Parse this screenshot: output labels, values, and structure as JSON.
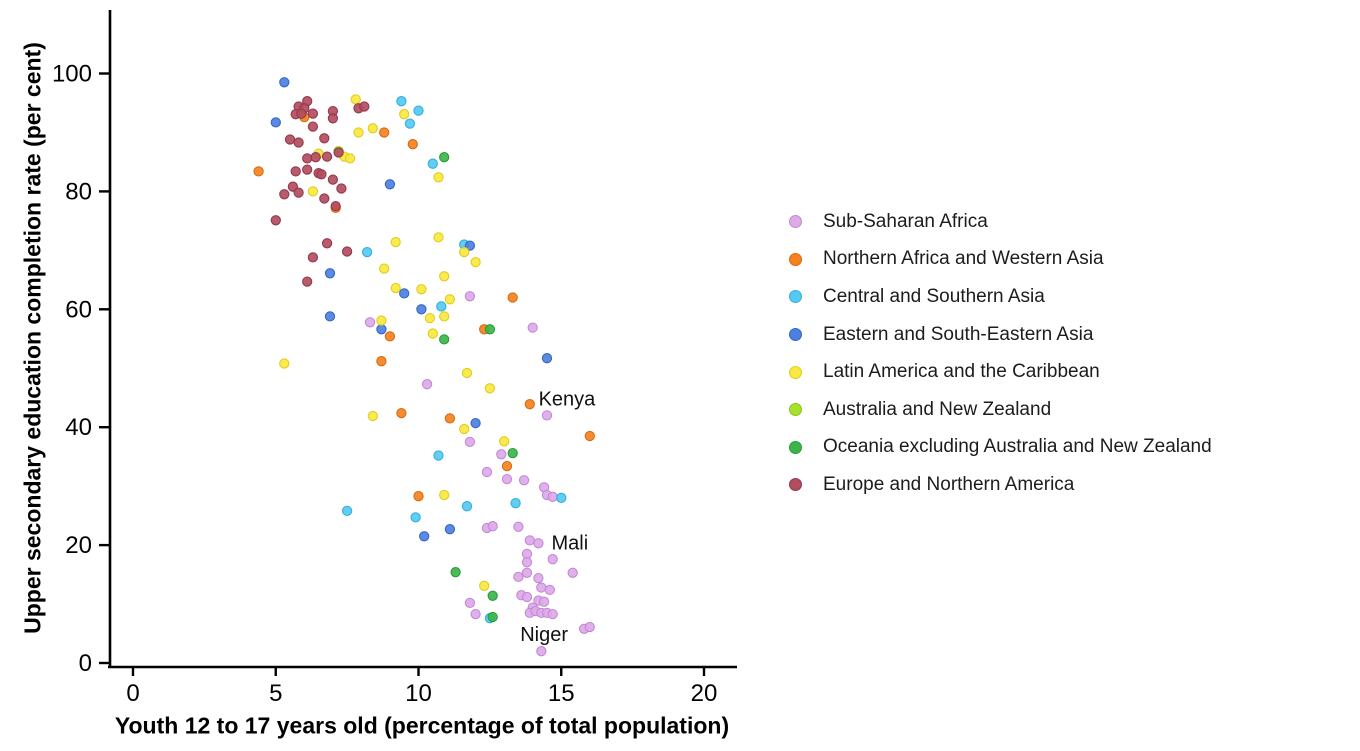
{
  "chart_data": {
    "type": "scatter",
    "title": "",
    "xlabel": "Youth 12 to 17 years old (percentage of total population)",
    "ylabel": "Upper secondary education completion rate (per cent)",
    "xlim": [
      0,
      20
    ],
    "ylim": [
      0,
      100
    ],
    "xticks": [
      0,
      5,
      10,
      15,
      20
    ],
    "yticks": [
      0,
      20,
      40,
      60,
      80,
      100
    ],
    "grid": false,
    "legend_position": "right",
    "annotations": [
      {
        "label": "Kenya",
        "x": 15.2,
        "y": 44.9
      },
      {
        "label": "Mali",
        "x": 15.3,
        "y": 20.4
      },
      {
        "label": "Niger",
        "x": 14.4,
        "y": 4.9
      }
    ],
    "series": [
      {
        "name": "Sub-Saharan Africa",
        "color": "#dda9e8",
        "stroke": "#c489d6",
        "points": [
          [
            11.8,
            62.2
          ],
          [
            14.0,
            56.9
          ],
          [
            8.3,
            57.8
          ],
          [
            10.3,
            47.3
          ],
          [
            14.5,
            42.0
          ],
          [
            11.8,
            37.5
          ],
          [
            12.9,
            35.4
          ],
          [
            12.4,
            32.4
          ],
          [
            13.1,
            31.2
          ],
          [
            13.7,
            31.0
          ],
          [
            14.4,
            29.8
          ],
          [
            14.5,
            28.5
          ],
          [
            14.7,
            28.2
          ],
          [
            12.4,
            22.9
          ],
          [
            12.6,
            23.2
          ],
          [
            13.5,
            23.1
          ],
          [
            13.9,
            20.8
          ],
          [
            14.2,
            20.3
          ],
          [
            13.8,
            18.5
          ],
          [
            13.8,
            17.1
          ],
          [
            14.7,
            17.6
          ],
          [
            15.4,
            15.3
          ],
          [
            13.5,
            14.6
          ],
          [
            13.8,
            15.3
          ],
          [
            14.2,
            14.4
          ],
          [
            14.3,
            12.8
          ],
          [
            14.6,
            12.4
          ],
          [
            13.6,
            11.5
          ],
          [
            13.8,
            11.2
          ],
          [
            11.8,
            10.2
          ],
          [
            12.0,
            8.3
          ],
          [
            14.0,
            9.4
          ],
          [
            14.2,
            10.6
          ],
          [
            14.4,
            10.4
          ],
          [
            13.9,
            8.5
          ],
          [
            14.1,
            8.8
          ],
          [
            14.3,
            8.5
          ],
          [
            14.5,
            8.5
          ],
          [
            14.7,
            8.3
          ],
          [
            15.8,
            5.8
          ],
          [
            16.0,
            6.1
          ],
          [
            14.3,
            2.0
          ]
        ]
      },
      {
        "name": "Northern Africa and Western Asia",
        "color": "#f58220",
        "stroke": "#d96a0e",
        "points": [
          [
            4.4,
            83.4
          ],
          [
            6.0,
            92.6
          ],
          [
            8.8,
            90.0
          ],
          [
            9.8,
            88.0
          ],
          [
            7.1,
            77.2
          ],
          [
            9.0,
            55.4
          ],
          [
            13.3,
            62.0
          ],
          [
            12.3,
            56.6
          ],
          [
            8.7,
            51.2
          ],
          [
            9.4,
            42.4
          ],
          [
            11.1,
            41.5
          ],
          [
            13.9,
            43.9
          ],
          [
            13.1,
            33.4
          ],
          [
            10.0,
            28.3
          ],
          [
            16.0,
            38.5
          ]
        ]
      },
      {
        "name": "Central and Southern Asia",
        "color": "#56c9f2",
        "stroke": "#2fb0dd",
        "points": [
          [
            9.4,
            95.3
          ],
          [
            10.0,
            93.7
          ],
          [
            9.7,
            91.5
          ],
          [
            10.5,
            84.7
          ],
          [
            8.2,
            69.7
          ],
          [
            11.6,
            71.0
          ],
          [
            10.8,
            60.5
          ],
          [
            10.7,
            35.2
          ],
          [
            7.5,
            25.8
          ],
          [
            9.9,
            24.7
          ],
          [
            11.7,
            26.6
          ],
          [
            13.4,
            27.1
          ],
          [
            15.0,
            28.0
          ],
          [
            12.5,
            7.6
          ]
        ]
      },
      {
        "name": "Eastern and South-Eastern Asia",
        "color": "#4d80e0",
        "stroke": "#3666c2",
        "points": [
          [
            5.3,
            98.5
          ],
          [
            5.0,
            91.7
          ],
          [
            9.0,
            81.2
          ],
          [
            6.9,
            66.1
          ],
          [
            9.5,
            62.7
          ],
          [
            10.1,
            60.0
          ],
          [
            8.7,
            56.6
          ],
          [
            6.9,
            58.8
          ],
          [
            11.8,
            70.8
          ],
          [
            14.5,
            51.7
          ],
          [
            12.0,
            40.7
          ],
          [
            11.1,
            22.7
          ],
          [
            10.2,
            21.5
          ]
        ]
      },
      {
        "name": "Latin America and the Caribbean",
        "color": "#f8e840",
        "stroke": "#e0cd1f",
        "points": [
          [
            7.8,
            95.6
          ],
          [
            9.5,
            93.1
          ],
          [
            7.9,
            90.0
          ],
          [
            8.4,
            90.7
          ],
          [
            6.5,
            86.4
          ],
          [
            7.4,
            85.9
          ],
          [
            7.6,
            85.6
          ],
          [
            6.3,
            80.0
          ],
          [
            10.7,
            82.4
          ],
          [
            5.3,
            50.8
          ],
          [
            9.2,
            71.4
          ],
          [
            10.7,
            72.2
          ],
          [
            11.6,
            69.7
          ],
          [
            12.0,
            68.0
          ],
          [
            10.9,
            65.6
          ],
          [
            9.2,
            63.6
          ],
          [
            10.1,
            63.4
          ],
          [
            11.1,
            61.7
          ],
          [
            10.4,
            58.5
          ],
          [
            10.9,
            58.8
          ],
          [
            8.7,
            58.1
          ],
          [
            8.8,
            66.9
          ],
          [
            10.5,
            55.9
          ],
          [
            8.4,
            41.9
          ],
          [
            11.7,
            49.2
          ],
          [
            12.5,
            46.6
          ],
          [
            11.6,
            39.7
          ],
          [
            13.0,
            37.6
          ],
          [
            10.9,
            28.5
          ],
          [
            12.3,
            13.1
          ]
        ]
      },
      {
        "name": "Australia and New Zealand",
        "color": "#a5e22d",
        "stroke": "#88c513",
        "points": [
          [
            7.2,
            86.8
          ]
        ]
      },
      {
        "name": "Oceania excluding Australia and New Zealand",
        "color": "#3bb54a",
        "stroke": "#2a9c39",
        "points": [
          [
            10.9,
            85.8
          ],
          [
            10.9,
            54.9
          ],
          [
            12.5,
            56.6
          ],
          [
            13.3,
            35.6
          ],
          [
            11.3,
            15.4
          ],
          [
            12.6,
            11.4
          ],
          [
            12.6,
            7.8
          ]
        ]
      },
      {
        "name": "Europe and Northern America",
        "color": "#b24d5f",
        "stroke": "#94384a",
        "points": [
          [
            6.1,
            95.3
          ],
          [
            5.8,
            94.4
          ],
          [
            6.0,
            94.1
          ],
          [
            5.7,
            93.1
          ],
          [
            5.9,
            93.2
          ],
          [
            7.0,
            93.6
          ],
          [
            7.0,
            92.4
          ],
          [
            6.3,
            93.2
          ],
          [
            7.9,
            94.1
          ],
          [
            8.1,
            94.4
          ],
          [
            6.3,
            91.0
          ],
          [
            6.7,
            89.0
          ],
          [
            5.5,
            88.8
          ],
          [
            5.8,
            88.3
          ],
          [
            6.1,
            85.6
          ],
          [
            6.4,
            85.8
          ],
          [
            6.8,
            85.9
          ],
          [
            7.2,
            86.6
          ],
          [
            5.7,
            83.4
          ],
          [
            6.1,
            83.7
          ],
          [
            6.5,
            83.1
          ],
          [
            6.6,
            82.9
          ],
          [
            7.0,
            82.0
          ],
          [
            5.6,
            80.8
          ],
          [
            5.8,
            79.8
          ],
          [
            5.3,
            79.5
          ],
          [
            6.7,
            78.8
          ],
          [
            7.3,
            80.5
          ],
          [
            7.1,
            77.5
          ],
          [
            5.0,
            75.1
          ],
          [
            6.8,
            71.2
          ],
          [
            7.5,
            69.8
          ],
          [
            6.3,
            68.8
          ],
          [
            6.1,
            64.7
          ]
        ]
      }
    ]
  }
}
